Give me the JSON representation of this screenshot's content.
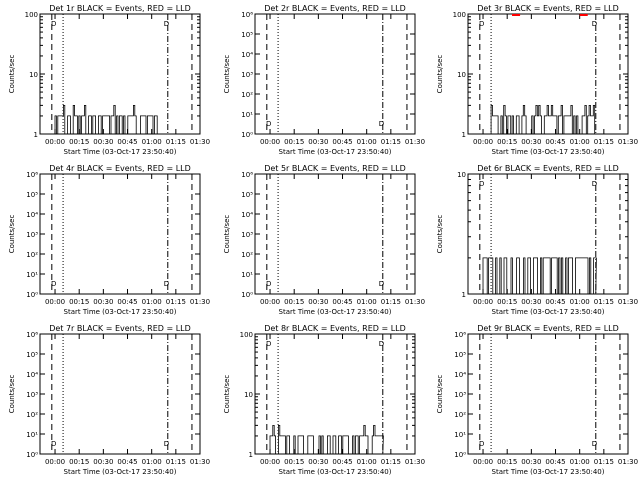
{
  "chart_data": [
    {
      "type": "line",
      "title": "Det 1r BLACK = Events, RED = LLD",
      "xlabel": "Start Time (03-Oct-17 23:50:40)",
      "ylabel": "Counts/sec",
      "ylog": true,
      "ylim": [
        1,
        100
      ],
      "yticks": [
        "1",
        "10",
        "100"
      ],
      "series": [
        {
          "name": "Events",
          "color": "#000000",
          "segments": [
            {
              "from": "00:00",
              "to": "01:10",
              "level": 2,
              "peak": 3
            }
          ]
        }
      ],
      "annotations": [
        "D",
        "D"
      ]
    },
    {
      "type": "line",
      "title": "Det 2r BLACK = Events, RED = LLD",
      "xlabel": "Start Time (03-Oct-17 23:50:40)",
      "ylabel": "Counts/sec",
      "ylog": true,
      "ylim": [
        1,
        1000000
      ],
      "yticks": [
        "10⁰",
        "10¹",
        "10²",
        "10³",
        "10⁴",
        "10⁵",
        "10⁶"
      ],
      "series": [],
      "annotations": [
        "D",
        "D"
      ]
    },
    {
      "type": "line",
      "title": "Det 3r BLACK = Events, RED = LLD",
      "xlabel": "Start Time (03-Oct-17 23:50:40)",
      "ylabel": "Counts/sec",
      "ylog": true,
      "ylim": [
        1,
        100
      ],
      "yticks": [
        "1",
        "10",
        "100"
      ],
      "series": [
        {
          "name": "Events",
          "color": "#000000",
          "segments": [
            {
              "from": "00:05",
              "to": "01:10",
              "level": 2,
              "peak": 3
            }
          ]
        },
        {
          "name": "LLD",
          "color": "#ff0000",
          "segments": [
            {
              "from": "00:18",
              "to": "00:23",
              "level": 100
            },
            {
              "from": "01:00",
              "to": "01:05",
              "level": 100
            }
          ]
        }
      ],
      "annotations": [
        "D",
        "D"
      ]
    },
    {
      "type": "line",
      "title": "Det 4r BLACK = Events, RED = LLD",
      "xlabel": "Start Time (03-Oct-17 23:50:40)",
      "ylabel": "Counts/sec",
      "ylog": true,
      "ylim": [
        1,
        1000000
      ],
      "yticks": [
        "10⁰",
        "10¹",
        "10²",
        "10³",
        "10⁴",
        "10⁵",
        "10⁶"
      ],
      "series": [],
      "annotations": [
        "D",
        "D"
      ]
    },
    {
      "type": "line",
      "title": "Det 5r BLACK = Events, RED = LLD",
      "xlabel": "Start Time (03-Oct-17 23:50:40)",
      "ylabel": "Counts/sec",
      "ylog": true,
      "ylim": [
        1,
        1000000
      ],
      "yticks": [
        "10⁰",
        "10¹",
        "10²",
        "10³",
        "10⁴",
        "10⁵",
        "10⁶"
      ],
      "series": [],
      "annotations": [
        "D",
        "D"
      ]
    },
    {
      "type": "line",
      "title": "Det 6r BLACK = Events, RED = LLD",
      "xlabel": "Start Time (03-Oct-17 23:50:40)",
      "ylabel": "Counts/sec",
      "ylog": true,
      "ylim": [
        1,
        10
      ],
      "yticks": [
        "1",
        "10"
      ],
      "series": [
        {
          "name": "Events",
          "color": "#000000",
          "segments": [
            {
              "from": "00:00",
              "to": "01:10",
              "level": 2,
              "peak": 2
            }
          ]
        }
      ],
      "annotations": [
        "D",
        "D"
      ]
    },
    {
      "type": "line",
      "title": "Det 7r BLACK = Events, RED = LLD",
      "xlabel": "Start Time (03-Oct-17 23:50:40)",
      "ylabel": "Counts/sec",
      "ylog": true,
      "ylim": [
        1,
        1000000
      ],
      "yticks": [
        "10⁰",
        "10¹",
        "10²",
        "10³",
        "10⁴",
        "10⁵",
        "10⁶"
      ],
      "series": [],
      "annotations": [
        "D",
        "D"
      ]
    },
    {
      "type": "line",
      "title": "Det 8r BLACK = Events, RED = LLD",
      "xlabel": "Start Time (03-Oct-17 23:50:40)",
      "ylabel": "Counts/sec",
      "ylog": true,
      "ylim": [
        1,
        100
      ],
      "yticks": [
        "1",
        "10",
        "100"
      ],
      "series": [
        {
          "name": "Events",
          "color": "#000000",
          "segments": [
            {
              "from": "00:00",
              "to": "01:10",
              "level": 2,
              "peak": 3
            }
          ]
        }
      ],
      "annotations": [
        "D",
        "D"
      ]
    },
    {
      "type": "line",
      "title": "Det 9r BLACK = Events, RED = LLD",
      "xlabel": "Start Time (03-Oct-17 23:50:40)",
      "ylabel": "Counts/sec",
      "ylog": true,
      "ylim": [
        1,
        1000000
      ],
      "yticks": [
        "10⁰",
        "10¹",
        "10²",
        "10³",
        "10⁴",
        "10⁵",
        "10⁶"
      ],
      "series": [],
      "annotations": [
        "D",
        "D"
      ]
    }
  ],
  "x_axis": {
    "ticks": [
      "00:00",
      "00:15",
      "00:30",
      "00:45",
      "01:00",
      "01:15",
      "01:30"
    ],
    "range": [
      "23:50:40",
      "01:30:00"
    ]
  },
  "markers": {
    "dashed": [
      "23:58",
      "01:25"
    ],
    "dotted": "00:05",
    "dashdot": "01:10"
  }
}
